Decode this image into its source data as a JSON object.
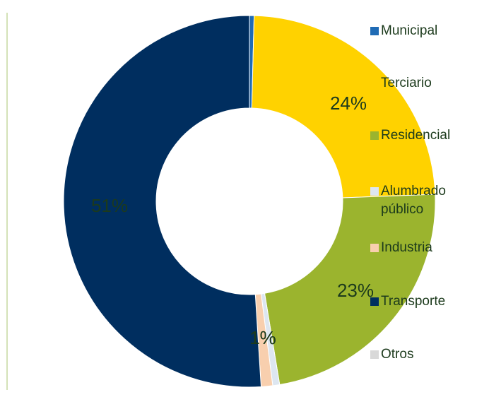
{
  "chart_data": {
    "type": "donut",
    "categories": [
      "Municipal",
      "Terciario",
      "Residencial",
      "Alumbrado público",
      "Industria",
      "Transporte",
      "Otros"
    ],
    "values": [
      0.4,
      24,
      23,
      0.6,
      1,
      51,
      0
    ],
    "value_labels": [
      null,
      "24%",
      "23%",
      "1%",
      "1%",
      "51%",
      null
    ],
    "colors": [
      "#1f6bb5",
      "#ffd200",
      "#9bb42e",
      "#dde6f0",
      "#f8cfae",
      "#002e5f",
      "#d9d9d9"
    ],
    "legend": "right"
  }
}
